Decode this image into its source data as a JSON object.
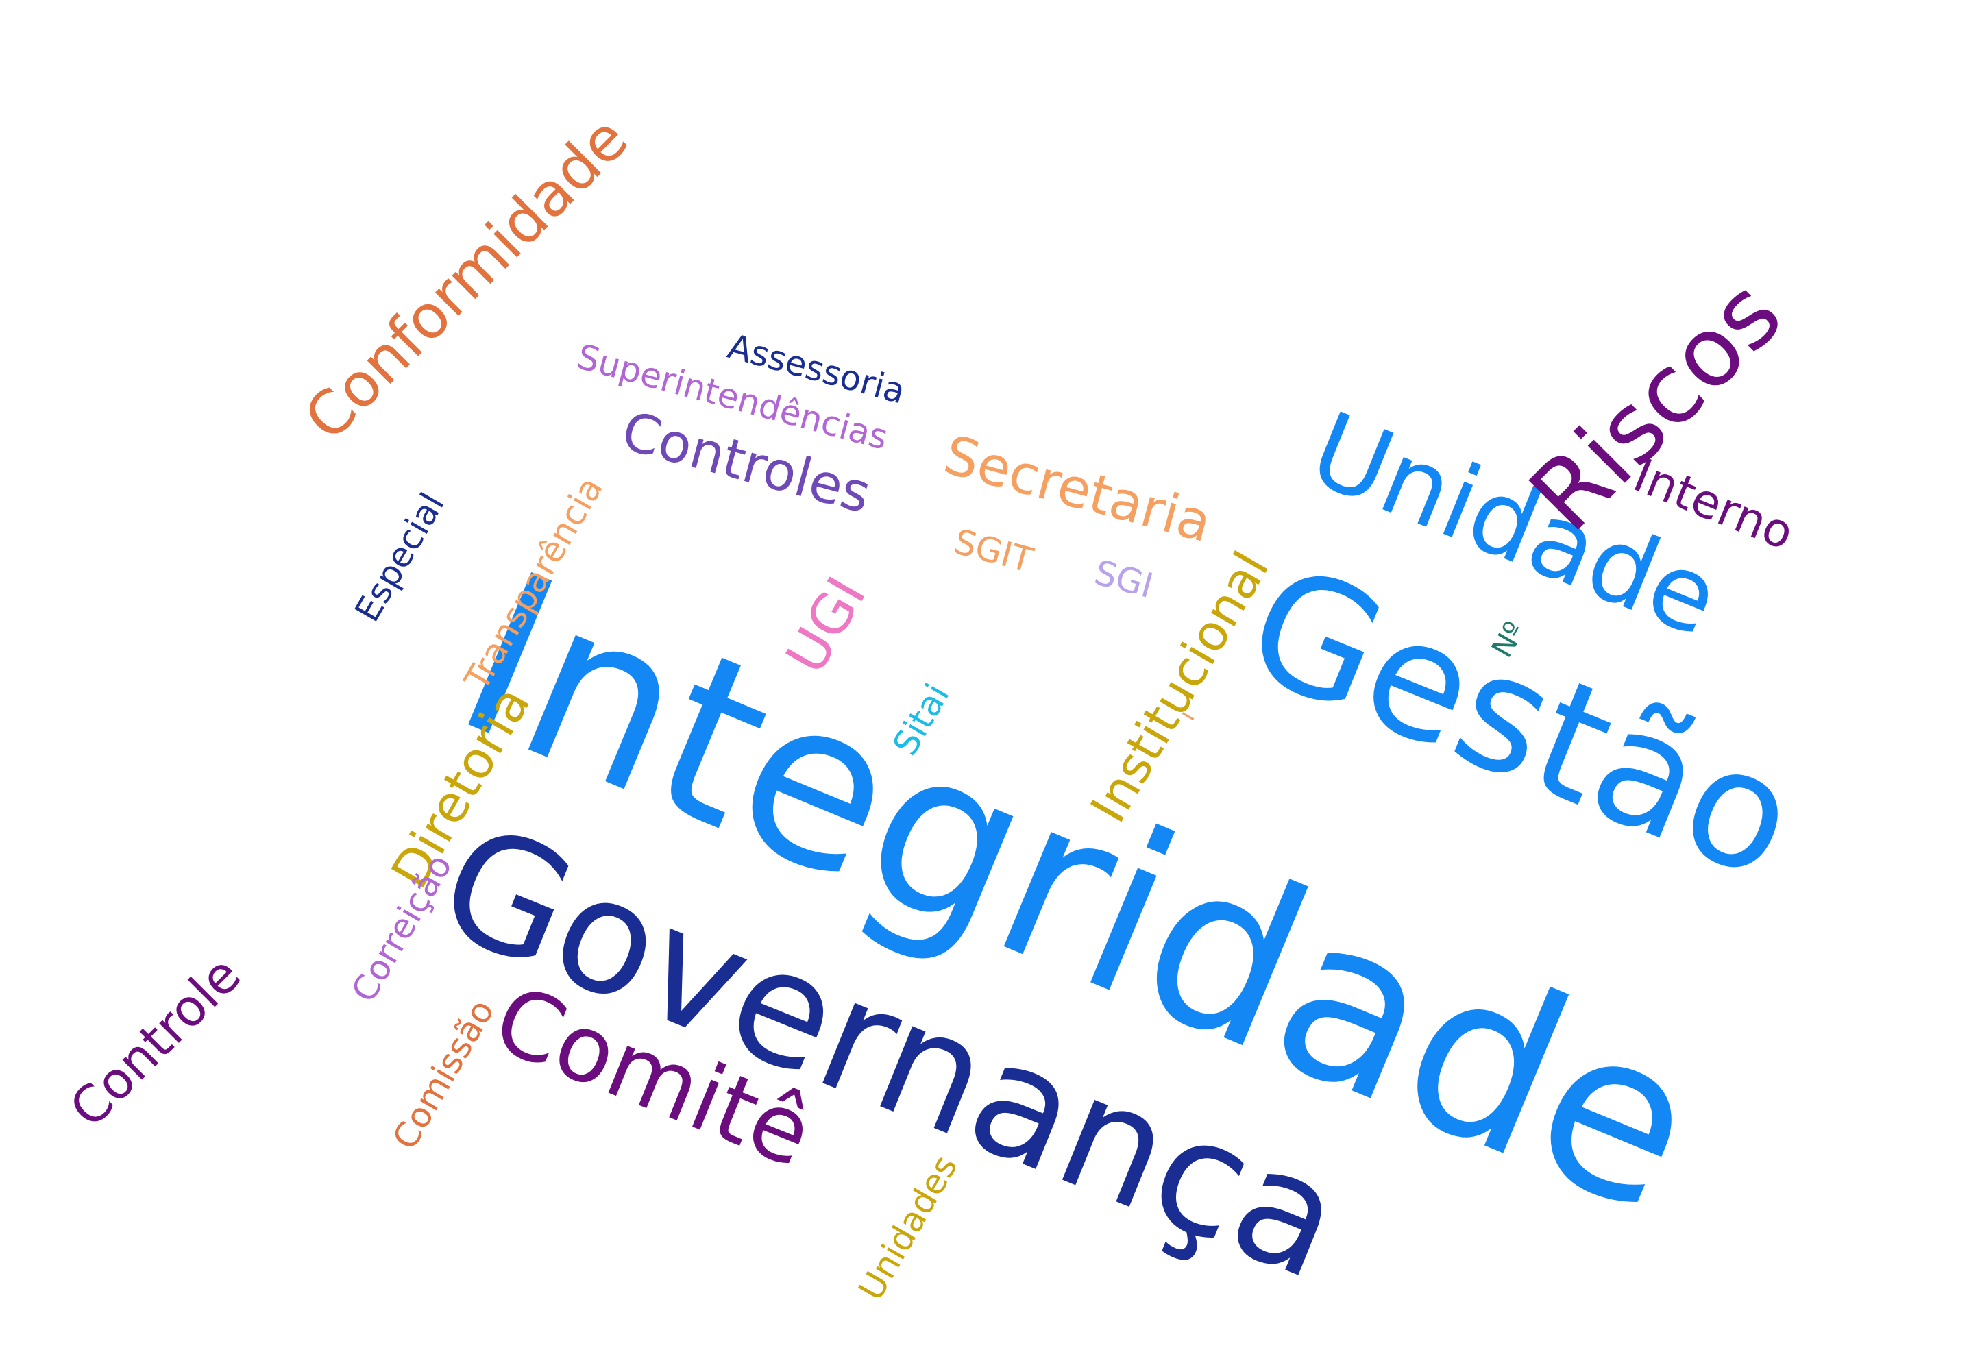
{
  "words": [
    {
      "key": "integridade",
      "text": "Integridade",
      "color": "#1388f5"
    },
    {
      "key": "governanca",
      "text": "Governança",
      "color": "#1a2d93"
    },
    {
      "key": "gestao",
      "text": "Gestão",
      "color": "#1388f5"
    },
    {
      "key": "unidade",
      "text": "Unidade",
      "color": "#1388f5"
    },
    {
      "key": "riscos",
      "text": "Riscos",
      "color": "#6b0d7e"
    },
    {
      "key": "comite",
      "text": "Comitê",
      "color": "#6b0d7e"
    },
    {
      "key": "conformidade",
      "text": "Conformidade",
      "color": "#e2723e"
    },
    {
      "key": "controles",
      "text": "Controles",
      "color": "#6f4ab7"
    },
    {
      "key": "secretaria",
      "text": "Secretaria",
      "color": "#f5a060"
    },
    {
      "key": "institucional",
      "text": "Institucional",
      "color": "#c9a70a"
    },
    {
      "key": "diretoria",
      "text": "Diretoria",
      "color": "#c9a70a"
    },
    {
      "key": "controle",
      "text": "Controle",
      "color": "#6b0d7e"
    },
    {
      "key": "interno",
      "text": "Interno",
      "color": "#6b0d7e"
    },
    {
      "key": "ugi",
      "text": "UGI",
      "color": "#ef78c5"
    },
    {
      "key": "assessoria",
      "text": "Assessoria",
      "color": "#1a2d93"
    },
    {
      "key": "superintendencias",
      "text": "Superintendências",
      "color": "#b265d4"
    },
    {
      "key": "transparencia",
      "text": "Transparência",
      "color": "#f5a060"
    },
    {
      "key": "especial",
      "text": "Especial",
      "color": "#1a2d93"
    },
    {
      "key": "correicao",
      "text": "Correição",
      "color": "#b265d4"
    },
    {
      "key": "comissao",
      "text": "Comissão",
      "color": "#e2723e"
    },
    {
      "key": "unidades",
      "text": "Unidades",
      "color": "#c9a70a"
    },
    {
      "key": "sitai",
      "text": "Sitai",
      "color": "#1bbde6"
    },
    {
      "key": "sgit",
      "text": "SGIT",
      "color": "#f5a060"
    },
    {
      "key": "sgi",
      "text": "SGI",
      "color": "#b8a2ec"
    },
    {
      "key": "numero",
      "text": "Nº",
      "color": "#1f7a6b"
    },
    {
      "key": "mark",
      "text": "ı",
      "color": "#f5a060"
    }
  ]
}
